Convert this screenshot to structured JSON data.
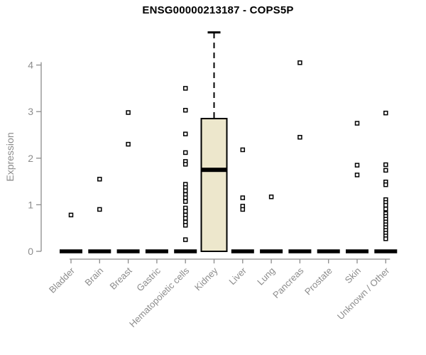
{
  "title": "ENSG00000213187 - COPS5P",
  "chart_data": {
    "type": "boxplot",
    "title": "ENSG00000213187 - COPS5P",
    "xlabel": "",
    "ylabel": "Expression",
    "ylim": [
      0,
      4.8
    ],
    "yticks": [
      0,
      1,
      2,
      3,
      4
    ],
    "grid": false,
    "legend": "none",
    "colors": {
      "box_fill": "#EDE7CC",
      "box_border": "#000000",
      "median_bar": "#000000",
      "outlier_stroke": "#000000",
      "outlier_fill": "#ffffff",
      "axis": "#8c8c8c",
      "tick_label": "#8c8c8c",
      "title_text": "#000000",
      "background": "#ffffff"
    },
    "categories": [
      "Bladder",
      "Brain",
      "Breast",
      "Gastric",
      "Hematopoietic cells",
      "Kidney",
      "Liver",
      "Lung",
      "Pancreas",
      "Prostate",
      "Skin",
      "Unknown / Other"
    ],
    "series": [
      {
        "category": "Bladder",
        "q1": 0,
        "median": 0,
        "q3": 0,
        "whisker_low": 0,
        "whisker_high": 0,
        "outliers": [
          0.78
        ]
      },
      {
        "category": "Brain",
        "q1": 0,
        "median": 0,
        "q3": 0,
        "whisker_low": 0,
        "whisker_high": 0,
        "outliers": [
          1.55,
          0.9
        ]
      },
      {
        "category": "Breast",
        "q1": 0,
        "median": 0,
        "q3": 0,
        "whisker_low": 0,
        "whisker_high": 0,
        "outliers": [
          2.98,
          2.3
        ]
      },
      {
        "category": "Gastric",
        "q1": 0,
        "median": 0,
        "q3": 0,
        "whisker_low": 0,
        "whisker_high": 0,
        "outliers": []
      },
      {
        "category": "Hematopoietic cells",
        "q1": 0,
        "median": 0,
        "q3": 0,
        "whisker_low": 0,
        "whisker_high": 0,
        "outliers": [
          3.5,
          3.03,
          2.52,
          2.12,
          1.93,
          1.87,
          1.44,
          1.37,
          1.3,
          1.22,
          1.15,
          1.07,
          0.93,
          0.86,
          0.78,
          0.71,
          0.63,
          0.56,
          0.25
        ]
      },
      {
        "category": "Kidney",
        "q1": 0,
        "median": 1.75,
        "q3": 2.85,
        "whisker_low": 0,
        "whisker_high": 4.7,
        "outliers": []
      },
      {
        "category": "Liver",
        "q1": 0,
        "median": 0,
        "q3": 0,
        "whisker_low": 0,
        "whisker_high": 0,
        "outliers": [
          2.18,
          1.15,
          0.97,
          0.9
        ]
      },
      {
        "category": "Lung",
        "q1": 0,
        "median": 0,
        "q3": 0,
        "whisker_low": 0,
        "whisker_high": 0,
        "outliers": [
          1.17
        ]
      },
      {
        "category": "Pancreas",
        "q1": 0,
        "median": 0,
        "q3": 0,
        "whisker_low": 0,
        "whisker_high": 0,
        "outliers": [
          4.05,
          2.45
        ]
      },
      {
        "category": "Prostate",
        "q1": 0,
        "median": 0,
        "q3": 0,
        "whisker_low": 0,
        "whisker_high": 0,
        "outliers": []
      },
      {
        "category": "Skin",
        "q1": 0,
        "median": 0,
        "q3": 0,
        "whisker_low": 0,
        "whisker_high": 0,
        "outliers": [
          2.75,
          1.85,
          1.64
        ]
      },
      {
        "category": "Unknown / Other",
        "q1": 0,
        "median": 0,
        "q3": 0,
        "whisker_low": 0,
        "whisker_high": 0,
        "outliers": [
          2.97,
          1.86,
          1.74,
          1.49,
          1.43,
          1.11,
          1.05,
          0.99,
          0.91,
          0.81,
          0.75,
          0.69,
          0.63,
          0.57,
          0.51,
          0.45,
          0.39,
          0.33,
          0.27
        ]
      }
    ]
  }
}
